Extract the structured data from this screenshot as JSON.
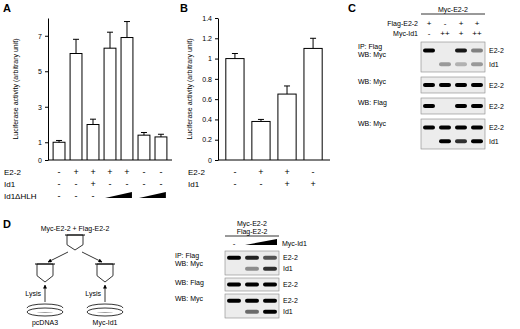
{
  "panel_labels": [
    "A",
    "B",
    "C",
    "D"
  ],
  "chart_data": [
    {
      "type": "bar",
      "y_label": "Luciferase activity (arbitrary unit)",
      "categories": [
        null,
        null,
        null,
        null,
        null,
        null,
        null
      ],
      "values": [
        1.0,
        6.0,
        2.0,
        6.3,
        6.9,
        1.4,
        1.3
      ],
      "errors": [
        0.1,
        0.8,
        0.3,
        0.9,
        0.9,
        0.15,
        0.15
      ],
      "color": "#ffffff",
      "ylim": [
        0,
        8
      ],
      "yticks": [
        0,
        1,
        3,
        5,
        7
      ],
      "conditions": [
        {
          "label": "E2-2",
          "cells": [
            "-",
            "+",
            "+",
            "+",
            "+",
            "-",
            "-"
          ]
        },
        {
          "label": "Id1",
          "cells": [
            "-",
            "-",
            "+",
            "-",
            "-",
            "-",
            "-"
          ]
        },
        {
          "label": "Id1ΔHLH",
          "cells": [
            "-",
            "-",
            "-",
            null,
            null,
            null,
            null
          ],
          "ramps": [
            [
              3,
              4
            ],
            [
              5,
              6
            ]
          ]
        }
      ]
    },
    {
      "type": "bar",
      "y_label": "Luciferase activity (arbitrary unit)",
      "categories": [
        null,
        null,
        null,
        null
      ],
      "values": [
        1.0,
        0.38,
        0.65,
        1.1
      ],
      "errors": [
        0.05,
        0.02,
        0.08,
        0.1
      ],
      "color": "#ffffff",
      "ylim": [
        0,
        1.4
      ],
      "yticks": [
        0,
        0.2,
        0.4,
        0.6,
        0.8,
        1,
        1.2,
        1.4
      ],
      "conditions": [
        {
          "label": "E2-2",
          "cells": [
            "-",
            "+",
            "+",
            "-"
          ]
        },
        {
          "label": "Id1",
          "cells": [
            "-",
            "-",
            "+",
            "+"
          ]
        }
      ]
    }
  ],
  "panel_c": {
    "header": [
      "Myc-E2-2"
    ],
    "conditions": [
      {
        "label": "Flag-E2-2",
        "cells": [
          "+",
          "-",
          "+",
          "+"
        ]
      },
      {
        "label": "Myc-Id1",
        "cells": [
          "-",
          "++",
          "+",
          "++"
        ]
      }
    ],
    "blots": [
      {
        "label": [
          "IP: Flag",
          "WB: Myc"
        ],
        "bands": [
          "E2-2",
          "Id1"
        ]
      },
      {
        "label": [
          "WB: Myc"
        ],
        "bands": [
          "E2-2"
        ]
      },
      {
        "label": [
          "WB: Flag"
        ],
        "bands": [
          "E2-2"
        ]
      },
      {
        "label": [
          "WB: Myc"
        ],
        "bands": [
          "E2-2",
          "Id1"
        ]
      }
    ]
  },
  "panel_d": {
    "diagram": {
      "title": "Myc-E2-2 + Flag-E2-2",
      "steps": [
        "Lysis",
        "Lysis"
      ],
      "plates": [
        "pcDNA3",
        "Myc-Id1"
      ]
    },
    "header": [
      "Myc-E2-2",
      "Flag-E2-2"
    ],
    "conditions": [
      {
        "label": "Myc-Id1",
        "cells": [
          "-",
          null,
          null
        ],
        "ramps": [
          [
            1,
            2
          ]
        ]
      }
    ],
    "blots": [
      {
        "label": [
          "IP: Flag",
          "WB: Myc"
        ],
        "bands": [
          "E2-2",
          "Id1"
        ]
      },
      {
        "label": [
          "WB: Flag"
        ],
        "bands": [
          "E2-2"
        ]
      },
      {
        "label": [
          "WB: Myc"
        ],
        "bands": [
          "E2-2",
          "Id1"
        ]
      }
    ]
  }
}
